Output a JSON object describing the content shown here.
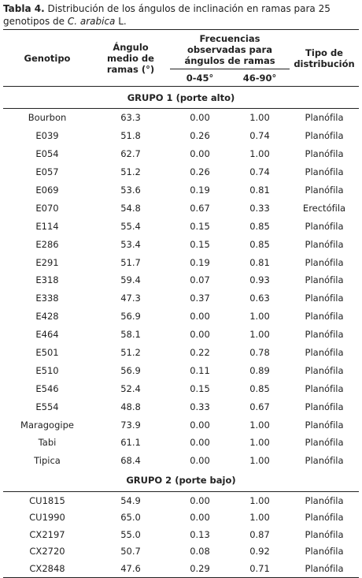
{
  "caption": {
    "label": "Tabla 4.",
    "text": "Distribución de los ángulos de inclinación en ramas para 25 genotipos de",
    "species": "C. arabica",
    "suffix": "L."
  },
  "header": {
    "genotipo": "Genotipo",
    "angulo": "Ángulo medio de ramas (°)",
    "frecuencias": "Frecuencias observadas para ángulos de ramas",
    "f1": "0-45°",
    "f2": "46-90°",
    "tipo": "Tipo de distribución"
  },
  "groups": [
    {
      "title": "GRUPO 1 (porte alto)",
      "rows": [
        [
          "Bourbon",
          "63.3",
          "0.00",
          "1.00",
          "Planófila"
        ],
        [
          "E039",
          "51.8",
          "0.26",
          "0.74",
          "Planófila"
        ],
        [
          "E054",
          "62.7",
          "0.00",
          "1.00",
          "Planófila"
        ],
        [
          "E057",
          "51.2",
          "0.26",
          "0.74",
          "Planófila"
        ],
        [
          "E069",
          "53.6",
          "0.19",
          "0.81",
          "Planófila"
        ],
        [
          "E070",
          "54.8",
          "0.67",
          "0.33",
          "Erectófila"
        ],
        [
          "E114",
          "55.4",
          "0.15",
          "0.85",
          "Planófila"
        ],
        [
          "E286",
          "53.4",
          "0.15",
          "0.85",
          "Planófila"
        ],
        [
          "E291",
          "51.7",
          "0.19",
          "0.81",
          "Planófila"
        ],
        [
          "E318",
          "59.4",
          "0.07",
          "0.93",
          "Planófila"
        ],
        [
          "E338",
          "47.3",
          "0.37",
          "0.63",
          "Planófila"
        ],
        [
          "E428",
          "56.9",
          "0.00",
          "1.00",
          "Planófila"
        ],
        [
          "E464",
          "58.1",
          "0.00",
          "1.00",
          "Planófila"
        ],
        [
          "E501",
          "51.2",
          "0.22",
          "0.78",
          "Planófila"
        ],
        [
          "E510",
          "56.9",
          "0.11",
          "0.89",
          "Planófila"
        ],
        [
          "E546",
          "52.4",
          "0.15",
          "0.85",
          "Planófila"
        ],
        [
          "E554",
          "48.8",
          "0.33",
          "0.67",
          "Planófila"
        ],
        [
          "Maragogipe",
          "73.9",
          "0.00",
          "1.00",
          "Planófila"
        ],
        [
          "Tabi",
          "61.1",
          "0.00",
          "1.00",
          "Planófila"
        ],
        [
          "Tipica",
          "68.4",
          "0.00",
          "1.00",
          "Planófila"
        ]
      ]
    },
    {
      "title": "GRUPO 2 (porte bajo)",
      "rows": [
        [
          "CU1815",
          "54.9",
          "0.00",
          "1.00",
          "Planófila"
        ],
        [
          "CU1990",
          "65.0",
          "0.00",
          "1.00",
          "Planófila"
        ],
        [
          "CX2197",
          "55.0",
          "0.13",
          "0.87",
          "Planófila"
        ],
        [
          "CX2720",
          "50.7",
          "0.08",
          "0.92",
          "Planófila"
        ],
        [
          "CX2848",
          "47.6",
          "0.29",
          "0.71",
          "Planófila"
        ]
      ]
    }
  ]
}
